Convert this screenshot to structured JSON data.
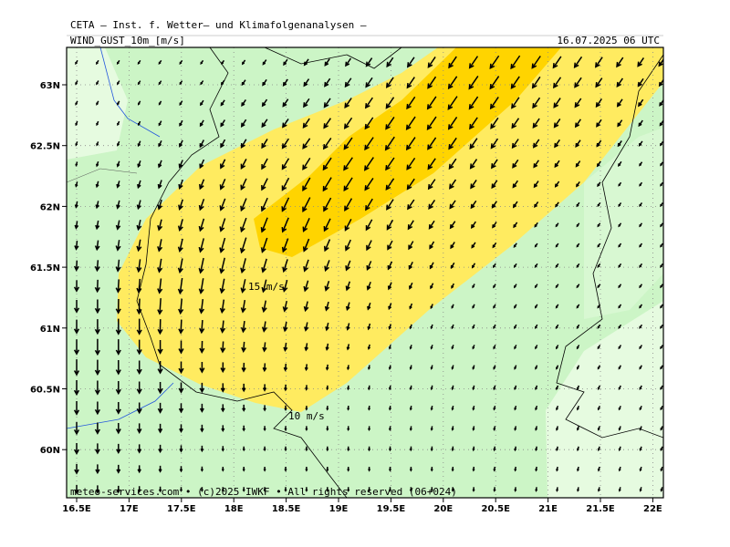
{
  "header": {
    "title": "CETA — Inst. f. Wetter— und Klimafolgenanalysen —",
    "field": "WIND_GUST_10m_[m/s]",
    "valid": "16.07.2025 06 UTC"
  },
  "map": {
    "lat_labels": [
      "63N",
      "62.5N",
      "62N",
      "61.5N",
      "61N",
      "60.5N",
      "60N"
    ],
    "lon_labels": [
      "16.5E",
      "17E",
      "17.5E",
      "18E",
      "18.5E",
      "19E",
      "19.5E",
      "20E",
      "20.5E",
      "21E",
      "21.5E",
      "22E"
    ],
    "contour_labels": [
      "15 m/s",
      "10 m/s"
    ]
  },
  "footer": "meteo-services.com • (c)2025 IWKF • All rights reserved (06+024)"
}
